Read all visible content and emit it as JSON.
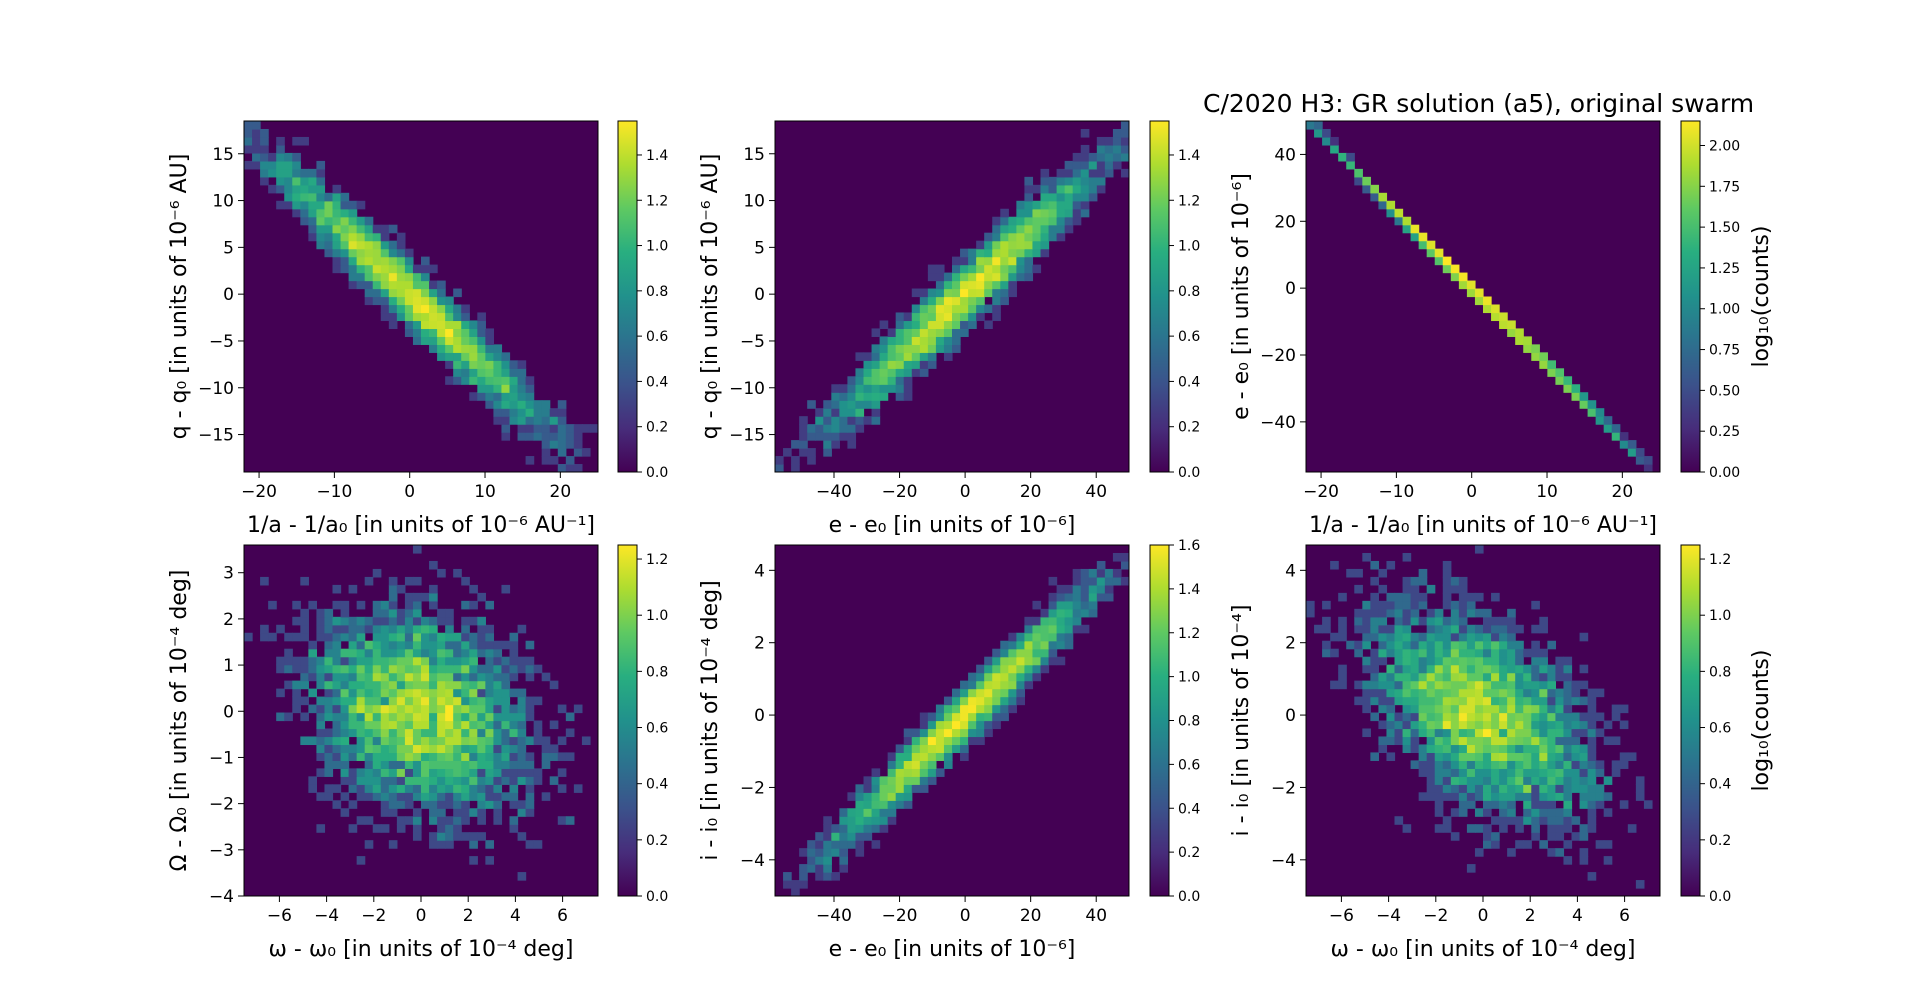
{
  "figure": {
    "title": "C/2020 H3: GR solution (a5),  original swarm"
  },
  "chart_data": [
    {
      "type": "heatmap",
      "id": "p1",
      "xlabel": "1/a - 1/a₀ [in units of 10⁻⁶ AU⁻¹]",
      "ylabel": "q - q₀ [in units of 10⁻⁶ AU]",
      "xlim": [
        -22,
        25
      ],
      "ylim": [
        -19,
        18.5
      ],
      "xticks": [
        -20,
        -10,
        0,
        10,
        20
      ],
      "yticks": [
        -15,
        -10,
        -5,
        0,
        5,
        10,
        15
      ],
      "colorbar": {
        "label": "",
        "min": 0,
        "max": 1.55,
        "ticks": [
          "0.0",
          "0.2",
          "0.4",
          "0.6",
          "0.8",
          "1.0",
          "1.2",
          "1.4"
        ],
        "tick_values": [
          0,
          0.2,
          0.4,
          0.6,
          0.8,
          1.0,
          1.2,
          1.4
        ]
      },
      "distribution": {
        "shape": "correlated",
        "slope": -0.77,
        "spread_x": 8.5,
        "spread_perp": 1.6,
        "n": 3600,
        "peak_log": 1.55,
        "seed": 11
      }
    },
    {
      "type": "heatmap",
      "id": "p2",
      "xlabel": "e - e₀ [in units of 10⁻⁶]",
      "ylabel": "q - q₀ [in units of 10⁻⁶ AU]",
      "xlim": [
        -58,
        50
      ],
      "ylim": [
        -19,
        18.5
      ],
      "xticks": [
        -40,
        -20,
        0,
        20,
        40
      ],
      "yticks": [
        -15,
        -10,
        -5,
        0,
        5,
        10,
        15
      ],
      "colorbar": {
        "label": "",
        "min": 0,
        "max": 1.55,
        "ticks": [
          "0.0",
          "0.2",
          "0.4",
          "0.6",
          "0.8",
          "1.0",
          "1.2",
          "1.4"
        ],
        "tick_values": [
          0,
          0.2,
          0.4,
          0.6,
          0.8,
          1.0,
          1.2,
          1.4
        ]
      },
      "distribution": {
        "shape": "correlated",
        "slope": 0.33,
        "spread_x": 19,
        "spread_perp": 1.6,
        "n": 3600,
        "peak_log": 1.55,
        "seed": 23
      }
    },
    {
      "type": "heatmap",
      "id": "p3",
      "xlabel": "1/a - 1/a₀ [in units of 10⁻⁶ AU⁻¹]",
      "ylabel": "e - e₀ [in units of 10⁻⁶]",
      "xlim": [
        -22,
        25
      ],
      "ylim": [
        -55,
        50
      ],
      "xticks": [
        -20,
        -10,
        0,
        10,
        20
      ],
      "yticks": [
        -40,
        -20,
        0,
        20,
        40
      ],
      "colorbar": {
        "label": "log₁₀(counts)",
        "min": 0,
        "max": 2.15,
        "ticks": [
          "0.00",
          "0.25",
          "0.50",
          "0.75",
          "1.00",
          "1.25",
          "1.50",
          "1.75",
          "2.00"
        ],
        "tick_values": [
          0,
          0.25,
          0.5,
          0.75,
          1.0,
          1.25,
          1.5,
          1.75,
          2.0
        ]
      },
      "distribution": {
        "shape": "line",
        "slope": -2.29,
        "spread_x": 8.5,
        "spread_perp": 0.0,
        "n": 3600,
        "peak_log": 2.15,
        "seed": 37
      }
    },
    {
      "type": "heatmap",
      "id": "p4",
      "xlabel": "ω - ω₀ [in units of 10⁻⁴ deg]",
      "ylabel": "Ω - Ω₀ [in units of 10⁻⁴ deg]",
      "xlim": [
        -7.5,
        7.5
      ],
      "ylim": [
        -4,
        3.6
      ],
      "xticks": [
        -6,
        -4,
        -2,
        0,
        2,
        4,
        6
      ],
      "yticks": [
        -4,
        -3,
        -2,
        -1,
        0,
        1,
        2,
        3
      ],
      "colorbar": {
        "label": "",
        "min": 0,
        "max": 1.25,
        "ticks": [
          "0.0",
          "0.2",
          "0.4",
          "0.6",
          "0.8",
          "1.0",
          "1.2"
        ],
        "tick_values": [
          0,
          0.2,
          0.4,
          0.6,
          0.8,
          1.0,
          1.2
        ]
      },
      "distribution": {
        "shape": "blob",
        "slope": -0.12,
        "spread_x": 2.2,
        "spread_perp": 1.0,
        "n": 3600,
        "peak_log": 1.25,
        "seed": 41
      }
    },
    {
      "type": "heatmap",
      "id": "p5",
      "xlabel": "e - e₀ [in units of 10⁻⁶]",
      "ylabel": "i - i₀ [in units of 10⁻⁴ deg]",
      "xlim": [
        -58,
        50
      ],
      "ylim": [
        -5,
        4.7
      ],
      "xticks": [
        -40,
        -20,
        0,
        20,
        40
      ],
      "yticks": [
        -4,
        -2,
        0,
        2,
        4
      ],
      "colorbar": {
        "label": "",
        "min": 0,
        "max": 1.6,
        "ticks": [
          "0.0",
          "0.2",
          "0.4",
          "0.6",
          "0.8",
          "1.0",
          "1.2",
          "1.4",
          "1.6"
        ],
        "tick_values": [
          0,
          0.2,
          0.4,
          0.6,
          0.8,
          1.0,
          1.2,
          1.4,
          1.6
        ]
      },
      "distribution": {
        "shape": "correlated",
        "slope": 0.088,
        "spread_x": 19,
        "spread_perp": 0.35,
        "n": 3600,
        "peak_log": 1.6,
        "seed": 53
      }
    },
    {
      "type": "heatmap",
      "id": "p6",
      "xlabel": "ω - ω₀ [in units of 10⁻⁴ deg]",
      "ylabel": "i - i₀ [in units of 10⁻⁴]",
      "xlim": [
        -7.5,
        7.5
      ],
      "ylim": [
        -5,
        4.7
      ],
      "xticks": [
        -6,
        -4,
        -2,
        0,
        2,
        4,
        6
      ],
      "yticks": [
        -4,
        -2,
        0,
        2,
        4
      ],
      "colorbar": {
        "label": "log₁₀(counts)",
        "min": 0,
        "max": 1.25,
        "ticks": [
          "0.0",
          "0.2",
          "0.4",
          "0.6",
          "0.8",
          "1.0",
          "1.2"
        ],
        "tick_values": [
          0,
          0.2,
          0.4,
          0.6,
          0.8,
          1.0,
          1.2
        ]
      },
      "distribution": {
        "shape": "blob",
        "slope": -0.3,
        "spread_x": 2.2,
        "spread_perp": 1.2,
        "n": 3600,
        "peak_log": 1.25,
        "seed": 67
      }
    }
  ]
}
